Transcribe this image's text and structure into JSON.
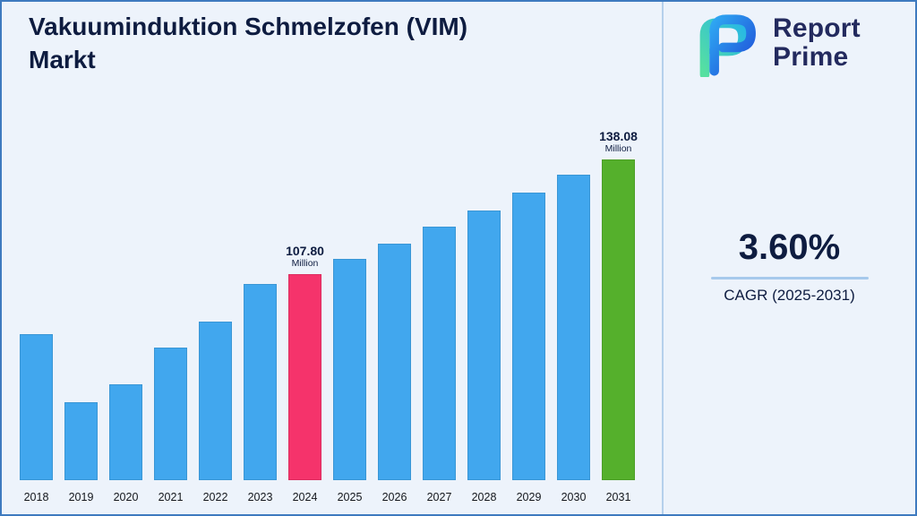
{
  "header": {
    "title": "Vakuuminduktion Schmelzofen (VIM) Markt"
  },
  "logo": {
    "line1": "Report",
    "line2": "Prime"
  },
  "stats": {
    "cagr_value": "3.60%",
    "cagr_label": "CAGR (2025-2031)"
  },
  "colors": {
    "background": "#edf3fb",
    "border": "#3e7abf",
    "bar_blue": "#41a7ee",
    "bar_pink": "#f5336b",
    "bar_green": "#55b02c",
    "navy": "#0e1c40",
    "underline": "#a7c9ec"
  },
  "chart_data": {
    "type": "bar",
    "title": "Vakuuminduktion Schmelzofen (VIM) Markt",
    "unit": "Million",
    "categories": [
      "2018",
      "2019",
      "2020",
      "2021",
      "2022",
      "2023",
      "2024",
      "2025",
      "2026",
      "2027",
      "2028",
      "2029",
      "2030",
      "2031"
    ],
    "values": [
      92.5,
      75.0,
      79.6,
      88.9,
      95.6,
      105.3,
      107.8,
      111.7,
      115.7,
      119.9,
      124.2,
      128.7,
      133.3,
      138.08
    ],
    "ylim": [
      55,
      145
    ],
    "xlabel": "",
    "ylabel": "",
    "grid": false,
    "legend": false,
    "default_color": "#41a7ee",
    "highlight_colors": {
      "2024": "#f5336b",
      "2031": "#55b02c"
    },
    "annotations": [
      {
        "year": "2024",
        "value_label": "107.80",
        "unit_label": "Million"
      },
      {
        "year": "2031",
        "value_label": "138.08",
        "unit_label": "Million"
      }
    ]
  }
}
